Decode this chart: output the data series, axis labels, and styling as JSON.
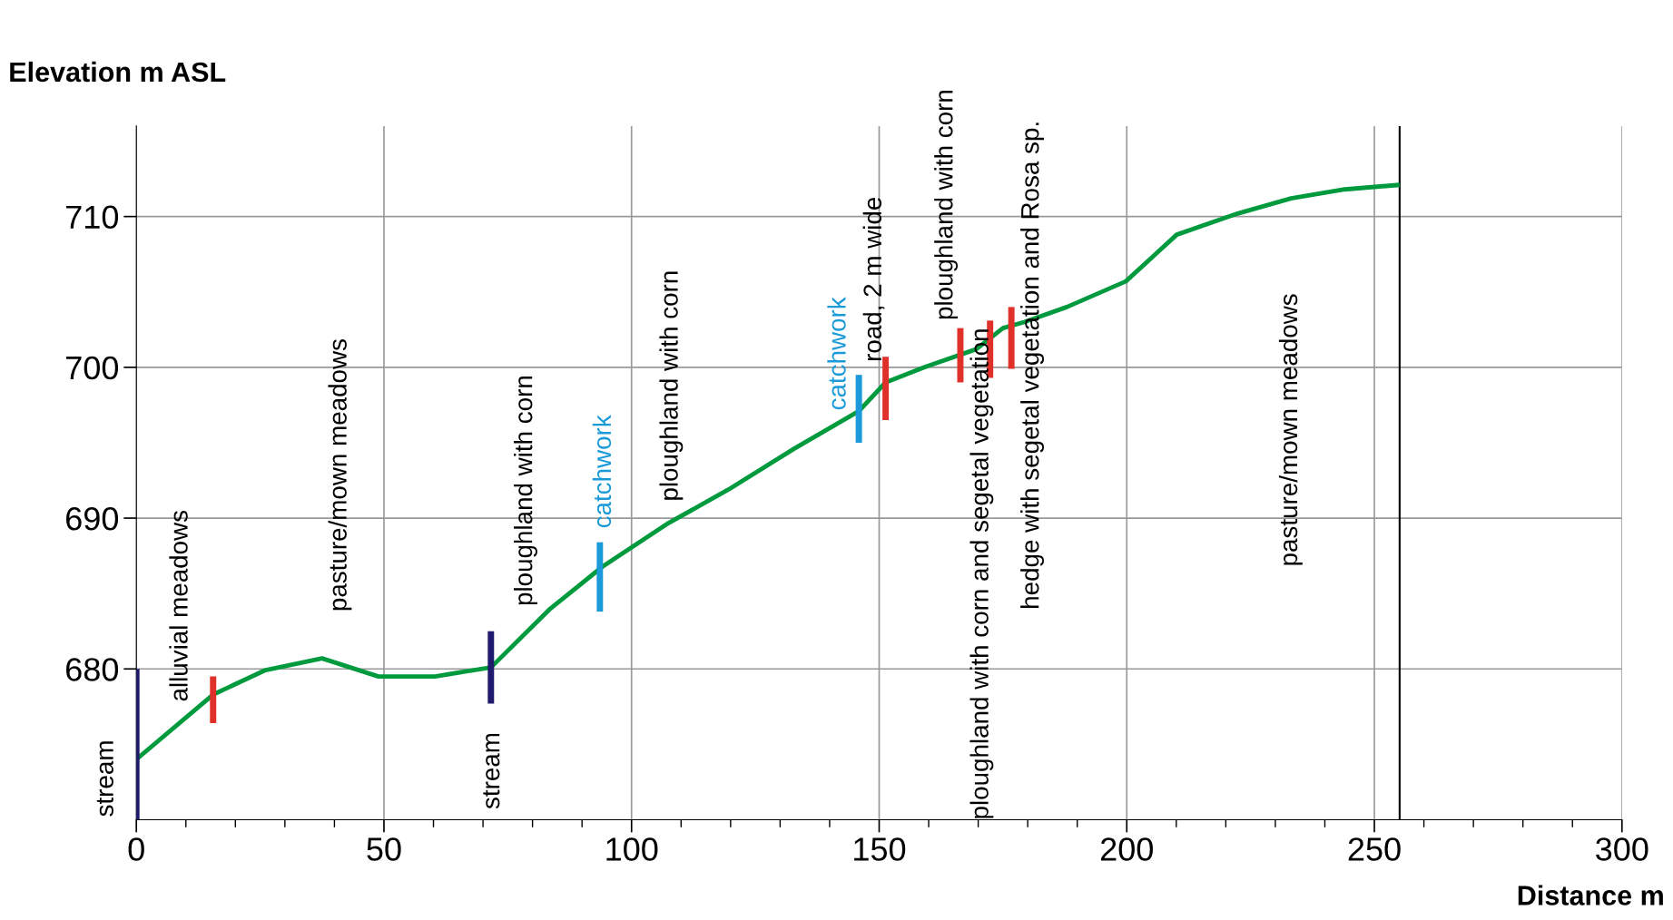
{
  "chart_data": {
    "type": "line",
    "xlabel": "Distance m",
    "ylabel": "Elevation m ASL",
    "xlim": [
      0,
      300
    ],
    "ylim": [
      670,
      716
    ],
    "xticks": [
      0,
      {
        "value": 10,
        "label": null
      },
      {
        "value": 20,
        "label": null
      },
      {
        "value": 30,
        "label": null
      },
      {
        "value": 40,
        "label": null
      },
      50,
      {
        "value": 60,
        "label": null
      },
      {
        "value": 70,
        "label": null
      },
      {
        "value": 80,
        "label": null
      },
      {
        "value": 90,
        "label": null
      },
      100,
      {
        "value": 110,
        "label": null
      },
      {
        "value": 120,
        "label": null
      },
      {
        "value": 130,
        "label": null
      },
      {
        "value": 140,
        "label": null
      },
      150,
      {
        "value": 160,
        "label": null
      },
      {
        "value": 170,
        "label": null
      },
      {
        "value": 180,
        "label": null
      },
      {
        "value": 190,
        "label": null
      },
      200,
      {
        "value": 210,
        "label": null
      },
      {
        "value": 220,
        "label": null
      },
      {
        "value": 230,
        "label": null
      },
      {
        "value": 240,
        "label": null
      },
      250,
      {
        "value": 260,
        "label": null
      },
      {
        "value": 270,
        "label": null
      },
      {
        "value": 280,
        "label": null
      },
      {
        "value": 290,
        "label": null
      },
      300
    ],
    "yticks": [
      680,
      690,
      700,
      710
    ],
    "grid": true,
    "marker": "none",
    "line_style": "solid",
    "series": [
      {
        "color": "#009a3e",
        "x": [
          0,
          15.5,
          25.9,
          37.5,
          48.9,
          60.3,
          71.6,
          83.6,
          94.2,
          107.1,
          119.6,
          132.8,
          145.9,
          151.3,
          159.9,
          169.6,
          175,
          179.3,
          187.9,
          199.8,
          210.1,
          222.4,
          233.2,
          244,
          255.1
        ],
        "values": [
          674.0,
          678.3,
          679.9,
          680.7,
          679.5,
          679.5,
          680.1,
          684.0,
          686.8,
          689.6,
          691.9,
          694.6,
          697.1,
          699.0,
          700.1,
          701.2,
          702.6,
          703.0,
          704.0,
          705.7,
          708.8,
          710.2,
          711.2,
          711.8,
          712.1
        ]
      },
      {
        "color": "#1f1a6e",
        "x": [
          0,
          0
        ],
        "values": [
          670,
          680
        ]
      },
      {
        "color": "#e0302a",
        "x": [
          15.5,
          15.5
        ],
        "values": [
          676.4,
          679.5
        ]
      },
      {
        "color": "#1f1a6e",
        "x": [
          71.6,
          71.6
        ],
        "values": [
          677.7,
          682.5
        ]
      },
      {
        "color": "#1a9ad9",
        "x": [
          93.6,
          93.6
        ],
        "values": [
          683.8,
          688.4
        ]
      },
      {
        "color": "#1a9ad9",
        "x": [
          145.9,
          145.9
        ],
        "values": [
          695.0,
          699.5
        ]
      },
      {
        "color": "#e0302a",
        "x": [
          151.3,
          151.3
        ],
        "values": [
          696.5,
          700.7
        ]
      },
      {
        "color": "#e0302a",
        "x": [
          166.4,
          166.4
        ],
        "values": [
          699.0,
          702.6
        ]
      },
      {
        "color": "#e0302a",
        "x": [
          172.4,
          172.4
        ],
        "values": [
          699.3,
          703.1
        ]
      },
      {
        "color": "#e0302a",
        "x": [
          176.7,
          176.7
        ],
        "values": [
          699.9,
          704.0
        ]
      }
    ],
    "ref_lines": [
      {
        "axis": "x",
        "value": 255.1,
        "color": "#000000"
      }
    ],
    "annotations": [
      "stream",
      "alluvial meadows",
      "pasture/mown meadows",
      "stream",
      "ploughland with corn",
      "catchwork",
      "ploughland with corn",
      "catchwork",
      "road, 2 m wide",
      "ploughland with corn",
      "ploughland with corn and segetal vegetation",
      "hedge with segetal vegetation and Rosa sp.",
      "pasture/mown meadows"
    ]
  }
}
